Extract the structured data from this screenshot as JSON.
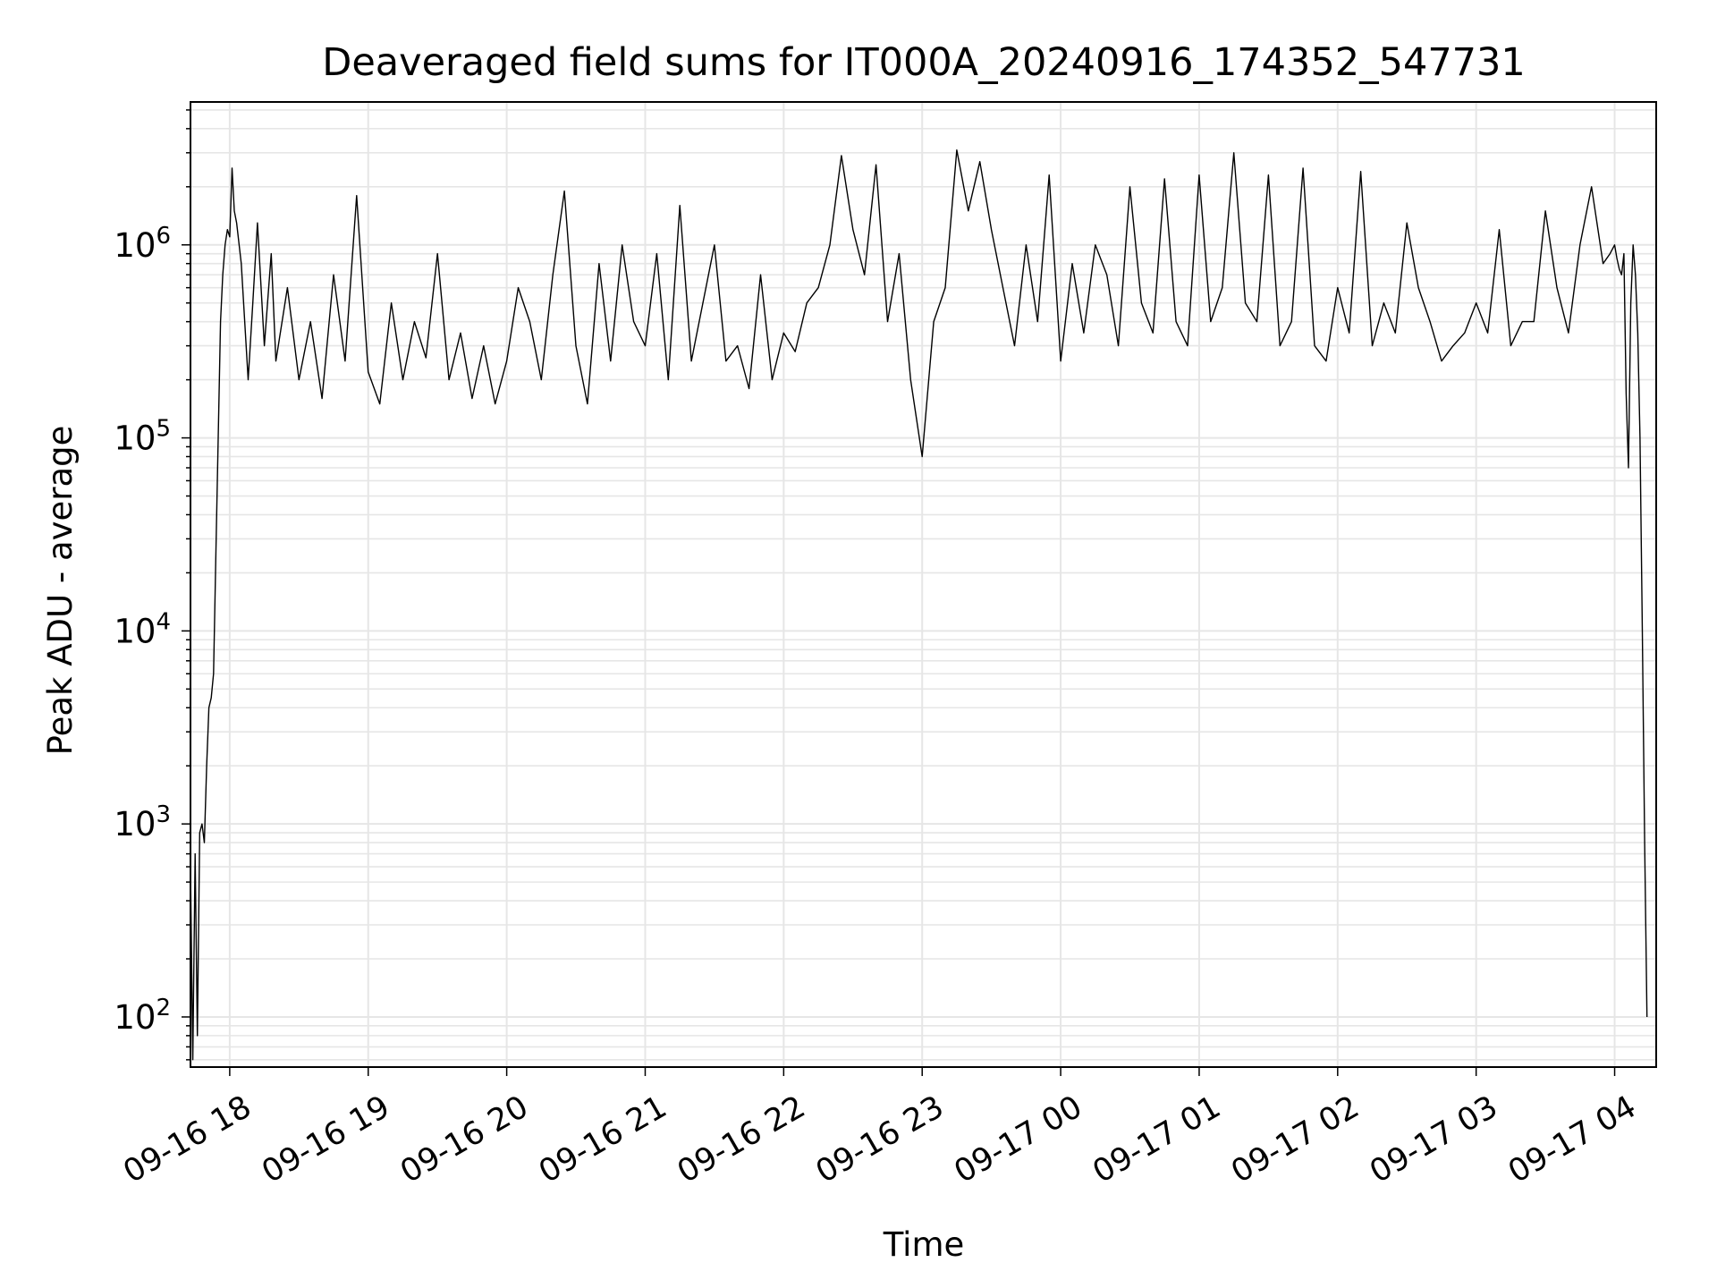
{
  "chart_data": {
    "type": "line",
    "title": "Deaveraged field sums for IT000A_20240916_174352_547731",
    "xlabel": "Time",
    "ylabel": "Peak ADU - average",
    "yscale": "log",
    "xlim": [
      "2024-09-16 17:43",
      "2024-09-17 04:18"
    ],
    "ylim": [
      55,
      5500000
    ],
    "grid": true,
    "line_color": "#000000",
    "grid_color": "#e6e6e6",
    "x_ticks": [
      {
        "t": "2024-09-16 18:00",
        "label": "09-16 18"
      },
      {
        "t": "2024-09-16 19:00",
        "label": "09-16 19"
      },
      {
        "t": "2024-09-16 20:00",
        "label": "09-16 20"
      },
      {
        "t": "2024-09-16 21:00",
        "label": "09-16 21"
      },
      {
        "t": "2024-09-16 22:00",
        "label": "09-16 22"
      },
      {
        "t": "2024-09-16 23:00",
        "label": "09-16 23"
      },
      {
        "t": "2024-09-17 00:00",
        "label": "09-17 00"
      },
      {
        "t": "2024-09-17 01:00",
        "label": "09-17 01"
      },
      {
        "t": "2024-09-17 02:00",
        "label": "09-17 02"
      },
      {
        "t": "2024-09-17 03:00",
        "label": "09-17 03"
      },
      {
        "t": "2024-09-17 04:00",
        "label": "09-17 04"
      }
    ],
    "y_ticks": [
      {
        "value": 100,
        "base": "10",
        "exp": "2"
      },
      {
        "value": 1000,
        "base": "10",
        "exp": "3"
      },
      {
        "value": 10000,
        "base": "10",
        "exp": "4"
      },
      {
        "value": 100000,
        "base": "10",
        "exp": "5"
      },
      {
        "value": 1000000,
        "base": "10",
        "exp": "6"
      }
    ],
    "series": [
      {
        "x": [
          "2024-09-16 17:43",
          "2024-09-16 17:44",
          "2024-09-16 17:45",
          "2024-09-16 17:46",
          "2024-09-16 17:47",
          "2024-09-16 17:48",
          "2024-09-16 17:49",
          "2024-09-16 17:50",
          "2024-09-16 17:51",
          "2024-09-16 17:52",
          "2024-09-16 17:53",
          "2024-09-16 17:54",
          "2024-09-16 17:55",
          "2024-09-16 17:56",
          "2024-09-16 17:57",
          "2024-09-16 17:58",
          "2024-09-16 17:59",
          "2024-09-16 18:00",
          "2024-09-16 18:01",
          "2024-09-16 18:02",
          "2024-09-16 18:03",
          "2024-09-16 18:05",
          "2024-09-16 18:08",
          "2024-09-16 18:10",
          "2024-09-16 18:12",
          "2024-09-16 18:15",
          "2024-09-16 18:18",
          "2024-09-16 18:20",
          "2024-09-16 18:25",
          "2024-09-16 18:30",
          "2024-09-16 18:35",
          "2024-09-16 18:40",
          "2024-09-16 18:45",
          "2024-09-16 18:50",
          "2024-09-16 18:55",
          "2024-09-16 19:00",
          "2024-09-16 19:05",
          "2024-09-16 19:10",
          "2024-09-16 19:15",
          "2024-09-16 19:20",
          "2024-09-16 19:25",
          "2024-09-16 19:30",
          "2024-09-16 19:35",
          "2024-09-16 19:40",
          "2024-09-16 19:45",
          "2024-09-16 19:50",
          "2024-09-16 19:55",
          "2024-09-16 20:00",
          "2024-09-16 20:05",
          "2024-09-16 20:10",
          "2024-09-16 20:15",
          "2024-09-16 20:20",
          "2024-09-16 20:25",
          "2024-09-16 20:30",
          "2024-09-16 20:35",
          "2024-09-16 20:40",
          "2024-09-16 20:45",
          "2024-09-16 20:50",
          "2024-09-16 20:55",
          "2024-09-16 21:00",
          "2024-09-16 21:05",
          "2024-09-16 21:10",
          "2024-09-16 21:15",
          "2024-09-16 21:20",
          "2024-09-16 21:25",
          "2024-09-16 21:30",
          "2024-09-16 21:35",
          "2024-09-16 21:40",
          "2024-09-16 21:45",
          "2024-09-16 21:50",
          "2024-09-16 21:55",
          "2024-09-16 22:00",
          "2024-09-16 22:05",
          "2024-09-16 22:10",
          "2024-09-16 22:15",
          "2024-09-16 22:20",
          "2024-09-16 22:25",
          "2024-09-16 22:30",
          "2024-09-16 22:35",
          "2024-09-16 22:40",
          "2024-09-16 22:45",
          "2024-09-16 22:50",
          "2024-09-16 22:55",
          "2024-09-16 23:00",
          "2024-09-16 23:05",
          "2024-09-16 23:10",
          "2024-09-16 23:15",
          "2024-09-16 23:20",
          "2024-09-16 23:25",
          "2024-09-16 23:30",
          "2024-09-16 23:35",
          "2024-09-16 23:40",
          "2024-09-16 23:45",
          "2024-09-16 23:50",
          "2024-09-16 23:55",
          "2024-09-17 00:00",
          "2024-09-17 00:05",
          "2024-09-17 00:10",
          "2024-09-17 00:15",
          "2024-09-17 00:20",
          "2024-09-17 00:25",
          "2024-09-17 00:30",
          "2024-09-17 00:35",
          "2024-09-17 00:40",
          "2024-09-17 00:45",
          "2024-09-17 00:50",
          "2024-09-17 00:55",
          "2024-09-17 01:00",
          "2024-09-17 01:05",
          "2024-09-17 01:10",
          "2024-09-17 01:15",
          "2024-09-17 01:20",
          "2024-09-17 01:25",
          "2024-09-17 01:30",
          "2024-09-17 01:35",
          "2024-09-17 01:40",
          "2024-09-17 01:45",
          "2024-09-17 01:50",
          "2024-09-17 01:55",
          "2024-09-17 02:00",
          "2024-09-17 02:05",
          "2024-09-17 02:10",
          "2024-09-17 02:15",
          "2024-09-17 02:20",
          "2024-09-17 02:25",
          "2024-09-17 02:30",
          "2024-09-17 02:35",
          "2024-09-17 02:40",
          "2024-09-17 02:45",
          "2024-09-17 02:50",
          "2024-09-17 02:55",
          "2024-09-17 03:00",
          "2024-09-17 03:05",
          "2024-09-17 03:10",
          "2024-09-17 03:15",
          "2024-09-17 03:20",
          "2024-09-17 03:25",
          "2024-09-17 03:30",
          "2024-09-17 03:35",
          "2024-09-17 03:40",
          "2024-09-17 03:45",
          "2024-09-17 03:50",
          "2024-09-17 03:55",
          "2024-09-17 03:58",
          "2024-09-17 04:00",
          "2024-09-17 04:01",
          "2024-09-17 04:02",
          "2024-09-17 04:03",
          "2024-09-17 04:04",
          "2024-09-17 04:05",
          "2024-09-17 04:06",
          "2024-09-17 04:07",
          "2024-09-17 04:08",
          "2024-09-17 04:09",
          "2024-09-17 04:10",
          "2024-09-17 04:11",
          "2024-09-17 04:12",
          "2024-09-17 04:13",
          "2024-09-17 04:14"
        ],
        "y": [
          600,
          60,
          700,
          80,
          900,
          1000,
          800,
          2000,
          4000,
          4500,
          6000,
          25000,
          100000,
          400000,
          700000,
          1000000,
          1200000,
          1100000,
          2500000,
          1500000,
          1300000,
          800000,
          200000,
          500000,
          1300000,
          300000,
          900000,
          250000,
          600000,
          200000,
          400000,
          160000,
          700000,
          250000,
          1800000,
          220000,
          150000,
          500000,
          200000,
          400000,
          260000,
          900000,
          200000,
          350000,
          160000,
          300000,
          150000,
          250000,
          600000,
          400000,
          200000,
          700000,
          1900000,
          300000,
          150000,
          800000,
          250000,
          1000000,
          400000,
          300000,
          900000,
          200000,
          1600000,
          250000,
          500000,
          1000000,
          250000,
          300000,
          180000,
          700000,
          200000,
          350000,
          280000,
          500000,
          600000,
          1000000,
          2900000,
          1200000,
          700000,
          2600000,
          400000,
          900000,
          200000,
          80000,
          400000,
          600000,
          3100000,
          1500000,
          2700000,
          1200000,
          600000,
          300000,
          1000000,
          400000,
          2300000,
          250000,
          800000,
          350000,
          1000000,
          700000,
          300000,
          2000000,
          500000,
          350000,
          2200000,
          400000,
          300000,
          2300000,
          400000,
          600000,
          3000000,
          500000,
          400000,
          2300000,
          300000,
          400000,
          2500000,
          300000,
          250000,
          600000,
          350000,
          2400000,
          300000,
          500000,
          350000,
          1300000,
          600000,
          400000,
          250000,
          300000,
          350000,
          500000,
          350000,
          1200000,
          300000,
          400000,
          400000,
          1500000,
          600000,
          350000,
          1000000,
          2000000,
          800000,
          900000,
          1000000,
          850000,
          750000,
          700000,
          900000,
          170000,
          70000,
          500000,
          1000000,
          700000,
          350000,
          100000,
          10000,
          800,
          100
        ]
      }
    ]
  }
}
